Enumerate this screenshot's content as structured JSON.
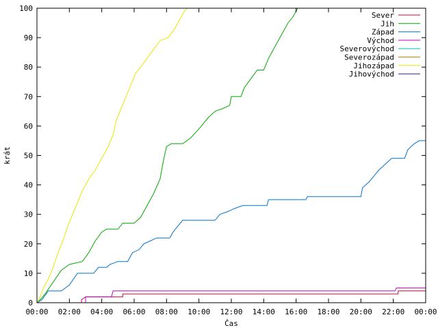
{
  "chart_data": {
    "type": "line",
    "xlabel": "Čas",
    "ylabel": "krát",
    "xlim": [
      0,
      24
    ],
    "ylim": [
      0,
      100
    ],
    "x_ticks": [
      {
        "v": 0,
        "label": "00:00"
      },
      {
        "v": 2,
        "label": "02:00"
      },
      {
        "v": 4,
        "label": "04:00"
      },
      {
        "v": 6,
        "label": "06:00"
      },
      {
        "v": 8,
        "label": "08:00"
      },
      {
        "v": 10,
        "label": "10:00"
      },
      {
        "v": 12,
        "label": "12:00"
      },
      {
        "v": 14,
        "label": "14:00"
      },
      {
        "v": 16,
        "label": "16:00"
      },
      {
        "v": 18,
        "label": "18:00"
      },
      {
        "v": 20,
        "label": "20:00"
      },
      {
        "v": 22,
        "label": "22:00"
      },
      {
        "v": 24,
        "label": "00:00"
      }
    ],
    "y_ticks": [
      0,
      10,
      20,
      30,
      40,
      50,
      60,
      70,
      80,
      90,
      100
    ],
    "grid": false,
    "legend_position": "top-right",
    "series": [
      {
        "name": "Sever",
        "color": "#e0003f",
        "points": [
          [
            0,
            0
          ],
          [
            2.75,
            0
          ],
          [
            2.75,
            1
          ],
          [
            3.0,
            2
          ],
          [
            5.3,
            2
          ],
          [
            5.3,
            3
          ],
          [
            22.3,
            3
          ],
          [
            22.3,
            4
          ],
          [
            24,
            4
          ]
        ]
      },
      {
        "name": "Jih",
        "color": "#00aa00",
        "points": [
          [
            0,
            0
          ],
          [
            0.2,
            1
          ],
          [
            0.5,
            3
          ],
          [
            1.0,
            7
          ],
          [
            1.5,
            11
          ],
          [
            2.0,
            13
          ],
          [
            2.8,
            14
          ],
          [
            3.2,
            17
          ],
          [
            3.6,
            21
          ],
          [
            4.0,
            24
          ],
          [
            4.3,
            25
          ],
          [
            5.0,
            25
          ],
          [
            5.3,
            27
          ],
          [
            6.0,
            27
          ],
          [
            6.4,
            29
          ],
          [
            6.8,
            33
          ],
          [
            7.2,
            37
          ],
          [
            7.6,
            42
          ],
          [
            7.8,
            48
          ],
          [
            8.0,
            53
          ],
          [
            8.3,
            54
          ],
          [
            9.0,
            54
          ],
          [
            9.5,
            56
          ],
          [
            10.0,
            59
          ],
          [
            10.3,
            61
          ],
          [
            10.6,
            63
          ],
          [
            11.0,
            65
          ],
          [
            11.5,
            66
          ],
          [
            11.9,
            67
          ],
          [
            12.0,
            70
          ],
          [
            12.6,
            70
          ],
          [
            12.8,
            73
          ],
          [
            13.2,
            76
          ],
          [
            13.6,
            79
          ],
          [
            14.0,
            79
          ],
          [
            14.3,
            83
          ],
          [
            14.7,
            87
          ],
          [
            15.1,
            91
          ],
          [
            15.5,
            95
          ],
          [
            15.8,
            97
          ],
          [
            16.1,
            100
          ]
        ]
      },
      {
        "name": "Západ",
        "color": "#0073d0",
        "points": [
          [
            0,
            0
          ],
          [
            0.3,
            1
          ],
          [
            0.7,
            4
          ],
          [
            1.5,
            4
          ],
          [
            2.0,
            6
          ],
          [
            2.5,
            10
          ],
          [
            3.5,
            10
          ],
          [
            3.8,
            12
          ],
          [
            4.3,
            12
          ],
          [
            4.5,
            13
          ],
          [
            5.0,
            14
          ],
          [
            5.6,
            14
          ],
          [
            5.9,
            17
          ],
          [
            6.3,
            18
          ],
          [
            6.6,
            20
          ],
          [
            7.0,
            21
          ],
          [
            7.4,
            22
          ],
          [
            8.2,
            22
          ],
          [
            8.4,
            24
          ],
          [
            8.7,
            26
          ],
          [
            9.0,
            28
          ],
          [
            11.0,
            28
          ],
          [
            11.3,
            30
          ],
          [
            11.8,
            31
          ],
          [
            12.2,
            32
          ],
          [
            12.7,
            33
          ],
          [
            14.2,
            33
          ],
          [
            14.3,
            35
          ],
          [
            16.6,
            35
          ],
          [
            16.7,
            36
          ],
          [
            20.0,
            36
          ],
          [
            20.1,
            39
          ],
          [
            20.5,
            41
          ],
          [
            20.8,
            43
          ],
          [
            21.1,
            45
          ],
          [
            21.5,
            47
          ],
          [
            21.9,
            49
          ],
          [
            22.7,
            49
          ],
          [
            22.9,
            52
          ],
          [
            23.3,
            54
          ],
          [
            23.6,
            55
          ],
          [
            24,
            55
          ]
        ]
      },
      {
        "name": "Východ",
        "color": "#c000c0",
        "points": [
          [
            0,
            0
          ],
          [
            3.0,
            0
          ],
          [
            3.0,
            2
          ],
          [
            4.6,
            2
          ],
          [
            4.7,
            4
          ],
          [
            22.1,
            4
          ],
          [
            22.2,
            5
          ],
          [
            24,
            5
          ]
        ]
      },
      {
        "name": "Severovýchod",
        "color": "#00c0c0",
        "points": []
      },
      {
        "name": "Severozápad",
        "color": "#c08000",
        "points": []
      },
      {
        "name": "Jihozápad",
        "color": "#e8e800",
        "points": [
          [
            0,
            0
          ],
          [
            0.2,
            2
          ],
          [
            0.4,
            5
          ],
          [
            0.7,
            8
          ],
          [
            1.0,
            12
          ],
          [
            1.3,
            17
          ],
          [
            1.6,
            21
          ],
          [
            1.9,
            26
          ],
          [
            2.2,
            30
          ],
          [
            2.5,
            34
          ],
          [
            2.8,
            38
          ],
          [
            3.2,
            42
          ],
          [
            3.6,
            45
          ],
          [
            4.0,
            49
          ],
          [
            4.4,
            53
          ],
          [
            4.7,
            57
          ],
          [
            4.9,
            62
          ],
          [
            5.2,
            66
          ],
          [
            5.5,
            70
          ],
          [
            5.8,
            74
          ],
          [
            6.1,
            78
          ],
          [
            6.4,
            80
          ],
          [
            6.8,
            83
          ],
          [
            7.2,
            86
          ],
          [
            7.6,
            89
          ],
          [
            8.1,
            90
          ],
          [
            8.5,
            93
          ],
          [
            8.8,
            96
          ],
          [
            9.1,
            99
          ],
          [
            9.3,
            100
          ]
        ]
      },
      {
        "name": "Jihovýchod",
        "color": "#2020a0",
        "points": []
      }
    ]
  }
}
